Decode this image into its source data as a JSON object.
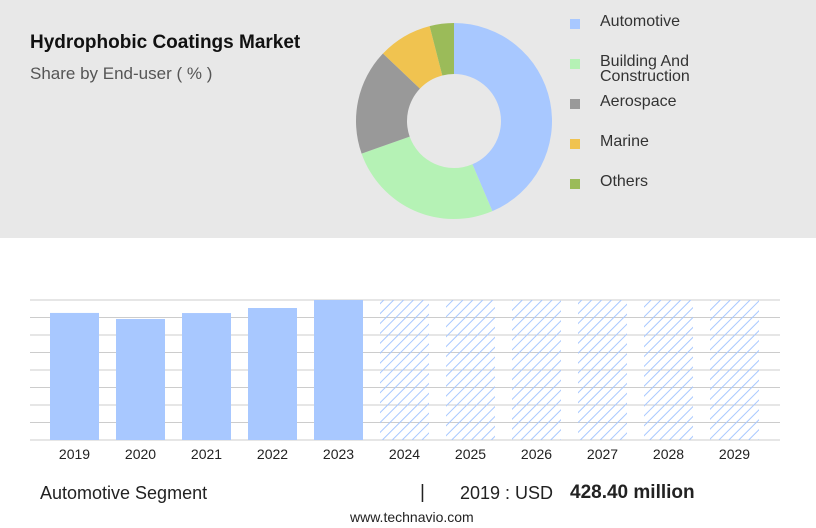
{
  "chart_data": [
    {
      "type": "pie",
      "title": "Hydrophobic Coatings Market",
      "subtitle": "Share by End-user ( % )",
      "categories": [
        "Automotive",
        "Building And Construction",
        "Aerospace",
        "Marine",
        "Others"
      ],
      "values": [
        43.6,
        26,
        17.5,
        8.9,
        4
      ],
      "colors": [
        "#a8c8ff",
        "#b5f2b5",
        "#999999",
        "#f0c350",
        "#9bbb59"
      ],
      "legend": "right"
    },
    {
      "type": "bar",
      "categories": [
        "2019",
        "2020",
        "2021",
        "2022",
        "2023",
        "2024",
        "2025",
        "2026",
        "2027",
        "2028",
        "2029"
      ],
      "values": [
        428.4,
        408,
        428,
        445,
        472,
        null,
        null,
        null,
        null,
        null,
        null
      ],
      "color": "#a8c8ff",
      "ylim": [
        0,
        472
      ],
      "grid": true
    }
  ],
  "footer": {
    "segment": "Automotive Segment",
    "separator": "|",
    "year_label": "2019 : USD",
    "value_label": "428.40 million",
    "source": "www.technavio.com"
  }
}
